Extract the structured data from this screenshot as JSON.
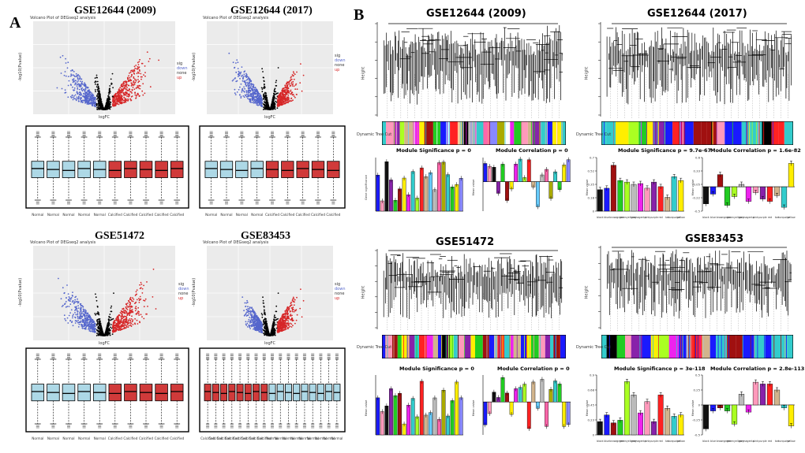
{
  "panels": {
    "A": "A",
    "B": "B"
  },
  "volcano": [
    {
      "id": "v1",
      "title": "GSE12644 (2009)",
      "subtitle": "Volcano Plot of DEGseq2 analysis",
      "xlabel": "logFC",
      "ylabel": "-log10(Pvalue)",
      "legend_title": "sig",
      "legend": [
        "down",
        "none",
        "up"
      ]
    },
    {
      "id": "v2",
      "title": "GSE12644 (2017)",
      "subtitle": "Volcano Plot of DEGseq2 analysis",
      "xlabel": "logFC",
      "ylabel": "-log10(Pvalue)",
      "legend_title": "sig",
      "legend": [
        "down",
        "none",
        "up"
      ]
    },
    {
      "id": "v3",
      "title": "GSE51472",
      "subtitle": "Volcano Plot of DEGseq2 analysis",
      "xlabel": "logFC",
      "ylabel": "-log10(Pvalue)",
      "legend_title": "sig",
      "legend": [
        "down",
        "none",
        "up"
      ]
    },
    {
      "id": "v4",
      "title": "GSE83453",
      "subtitle": "Volcano Plot of DEGseq2 analysis",
      "xlabel": "logFC",
      "ylabel": "-log10(Pvalue)",
      "legend_title": "sig",
      "legend": [
        "down",
        "none",
        "up"
      ]
    }
  ],
  "boxplots": [
    {
      "id": "b1",
      "categories": [
        "Normal",
        "Normal",
        "Normal",
        "Normal",
        "Normal",
        "Calcified",
        "Calcified",
        "Calcified",
        "Calcified",
        "Calcified"
      ]
    },
    {
      "id": "b2",
      "categories": [
        "Normal",
        "Normal",
        "Normal",
        "Normal",
        "Calcified",
        "Calcified",
        "Calcified",
        "Calcified",
        "Calcified"
      ]
    },
    {
      "id": "b3",
      "categories": [
        "Normal",
        "Normal",
        "Normal",
        "Normal",
        "Normal",
        "Calcified",
        "Calcified",
        "Calcified",
        "Calcified",
        "Calcified"
      ]
    },
    {
      "id": "b4",
      "categories": [
        "Calcified",
        "Calcified",
        "Calcified",
        "Calcified",
        "Calcified",
        "Calcified",
        "Calcified",
        "Calcified",
        "Normal",
        "Normal",
        "Normal",
        "Normal",
        "Normal",
        "Normal",
        "Normal",
        "Normal",
        "Normal"
      ]
    }
  ],
  "wgcna": [
    {
      "id": "w1",
      "title": "GSE12644 (2009)",
      "ylabel": "Height",
      "rowlabel": "Dynamic Tree Cut",
      "sig_title": "Module Significance  p = 0",
      "corr_title": "Module Correlation  p = 0",
      "sig_ylabel": "Gene significance",
      "corr_ylabel": "Mean value"
    },
    {
      "id": "w2",
      "title": "GSE12644 (2017)",
      "ylabel": "Height",
      "rowlabel": "Dynamic Tree Cut",
      "sig_title": "Module Significance  p = 9.7e-67",
      "corr_title": "Module Correlation  p = 1.6e-82",
      "sig_ylabel": "Mean value",
      "corr_ylabel": "Mean value"
    },
    {
      "id": "w3",
      "title": "GSE51472",
      "ylabel": "Height",
      "rowlabel": "Dynamic Tree Cut",
      "sig_title": "Module Significance  p = 0",
      "corr_title": "Module Correlation  p = 0",
      "sig_ylabel": "Mean value",
      "corr_ylabel": "Mean value"
    },
    {
      "id": "w4",
      "title": "GSE83453",
      "ylabel": "Height",
      "rowlabel": "Dynamic Tree Cut",
      "sig_title": "Module Significance  p = 3e-118",
      "corr_title": "Module Correlation  p = 2.8e-113",
      "sig_ylabel": "Mean value",
      "corr_ylabel": "Mean value"
    }
  ],
  "chart_data": [
    {
      "type": "bar",
      "title": "Module Significance  p = 9.7e-67",
      "categories": [
        "black",
        "blue",
        "brown",
        "green",
        "greenyellow",
        "grey",
        "magenta",
        "pink",
        "purple",
        "red",
        "tan",
        "turquoise",
        "yellow"
      ],
      "values": [
        0.28,
        0.3,
        0.6,
        0.4,
        0.38,
        0.35,
        0.36,
        0.3,
        0.38,
        0.32,
        0.18,
        0.45,
        0.4
      ],
      "colors": [
        "#111111",
        "#1a1aff",
        "#a01010",
        "#22cc22",
        "#aaff22",
        "#bbbbbb",
        "#ee22ee",
        "#ff99bb",
        "#8822aa",
        "#ff2222",
        "#d2b48c",
        "#33cccc",
        "#ffee00"
      ],
      "ylim": [
        0,
        0.7
      ]
    },
    {
      "type": "bar",
      "title": "Module Correlation  p = 1.6e-82",
      "categories": [
        "black",
        "blue",
        "brown",
        "green",
        "greenyellow",
        "grey",
        "magenta",
        "pink",
        "purple",
        "red",
        "tan",
        "turquoise",
        "yellow"
      ],
      "values": [
        -0.35,
        -0.15,
        0.25,
        -0.38,
        -0.2,
        0.05,
        -0.3,
        -0.12,
        -0.25,
        -0.3,
        -0.18,
        -0.42,
        0.48
      ],
      "colors": [
        "#111111",
        "#1a1aff",
        "#a01010",
        "#22cc22",
        "#aaff22",
        "#bbbbbb",
        "#ee22ee",
        "#ff99bb",
        "#8822aa",
        "#ff2222",
        "#d2b48c",
        "#33cccc",
        "#ffee00"
      ],
      "ylim": [
        -0.5,
        0.6
      ]
    },
    {
      "type": "bar",
      "title": "Module Significance  p = 3e-118",
      "categories": [
        "black",
        "blue",
        "brown",
        "green",
        "greenyellow",
        "grey",
        "magenta",
        "pink",
        "purple",
        "red",
        "tan",
        "turquoise",
        "yellow"
      ],
      "values": [
        0.2,
        0.3,
        0.18,
        0.22,
        0.8,
        0.6,
        0.33,
        0.5,
        0.2,
        0.6,
        0.4,
        0.28,
        0.3
      ],
      "colors": [
        "#111111",
        "#1a1aff",
        "#a01010",
        "#22cc22",
        "#aaff22",
        "#bbbbbb",
        "#ee22ee",
        "#ff99bb",
        "#8822aa",
        "#ff2222",
        "#d2b48c",
        "#33cccc",
        "#ffee00"
      ],
      "ylim": [
        0,
        0.9
      ]
    },
    {
      "type": "bar",
      "title": "Module Correlation  p = 2.8e-113",
      "categories": [
        "black",
        "blue",
        "brown",
        "green",
        "greenyellow",
        "grey",
        "magenta",
        "pink",
        "purple",
        "red",
        "tan",
        "turquoise",
        "yellow"
      ],
      "values": [
        -0.4,
        -0.1,
        -0.05,
        -0.1,
        -0.32,
        0.18,
        -0.12,
        0.38,
        0.35,
        0.35,
        0.25,
        -0.05,
        -0.35
      ],
      "colors": [
        "#111111",
        "#1a1aff",
        "#a01010",
        "#22cc22",
        "#aaff22",
        "#bbbbbb",
        "#ee22ee",
        "#ff99bb",
        "#8822aa",
        "#ff2222",
        "#d2b48c",
        "#33cccc",
        "#ffee00"
      ],
      "ylim": [
        -0.5,
        0.5
      ]
    }
  ],
  "colors": {
    "up": "#d62728",
    "down": "#5566cc",
    "none": "#000000",
    "normal_box": "#add8e6",
    "calcified_box": "#d03a3a"
  }
}
